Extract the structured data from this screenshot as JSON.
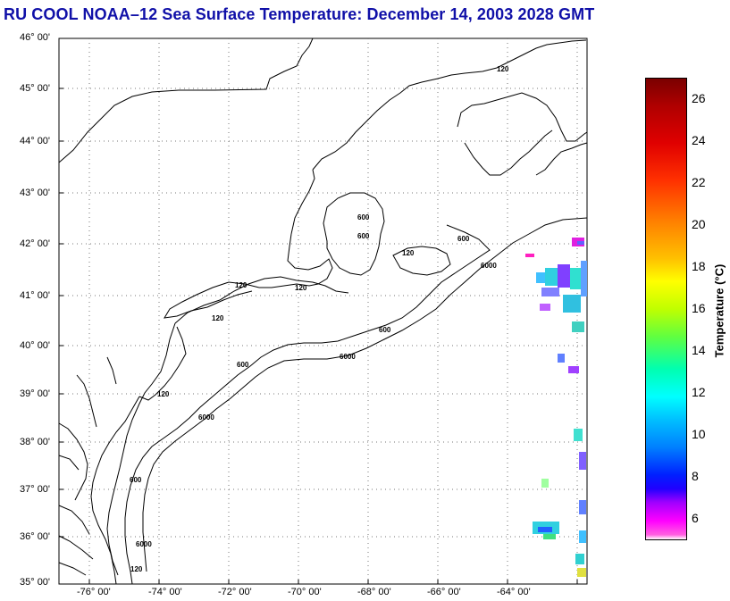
{
  "title": "RU COOL  NOAA–12  Sea Surface Temperature:  December 14, 2003 2028 GMT",
  "lat_labels": [
    "46° 00'",
    "45° 00'",
    "44° 00'",
    "43° 00'",
    "42° 00'",
    "41° 00'",
    "40° 00'",
    "39° 00'",
    "38° 00'",
    "37° 00'",
    "36° 00'",
    "35° 00'"
  ],
  "lon_labels": [
    "-76° 00'",
    "-74° 00'",
    "-72° 00'",
    "-70° 00'",
    "-68° 00'",
    "-66° 00'",
    "-64° 00'"
  ],
  "contour_labels": [
    "120",
    "600",
    "6000"
  ],
  "colorbar": {
    "label": "Temperature (°C)",
    "ticks": [
      "26",
      "24",
      "22",
      "20",
      "18",
      "16",
      "14",
      "12",
      "10",
      "8",
      "6"
    ],
    "range": [
      5,
      27
    ]
  }
}
